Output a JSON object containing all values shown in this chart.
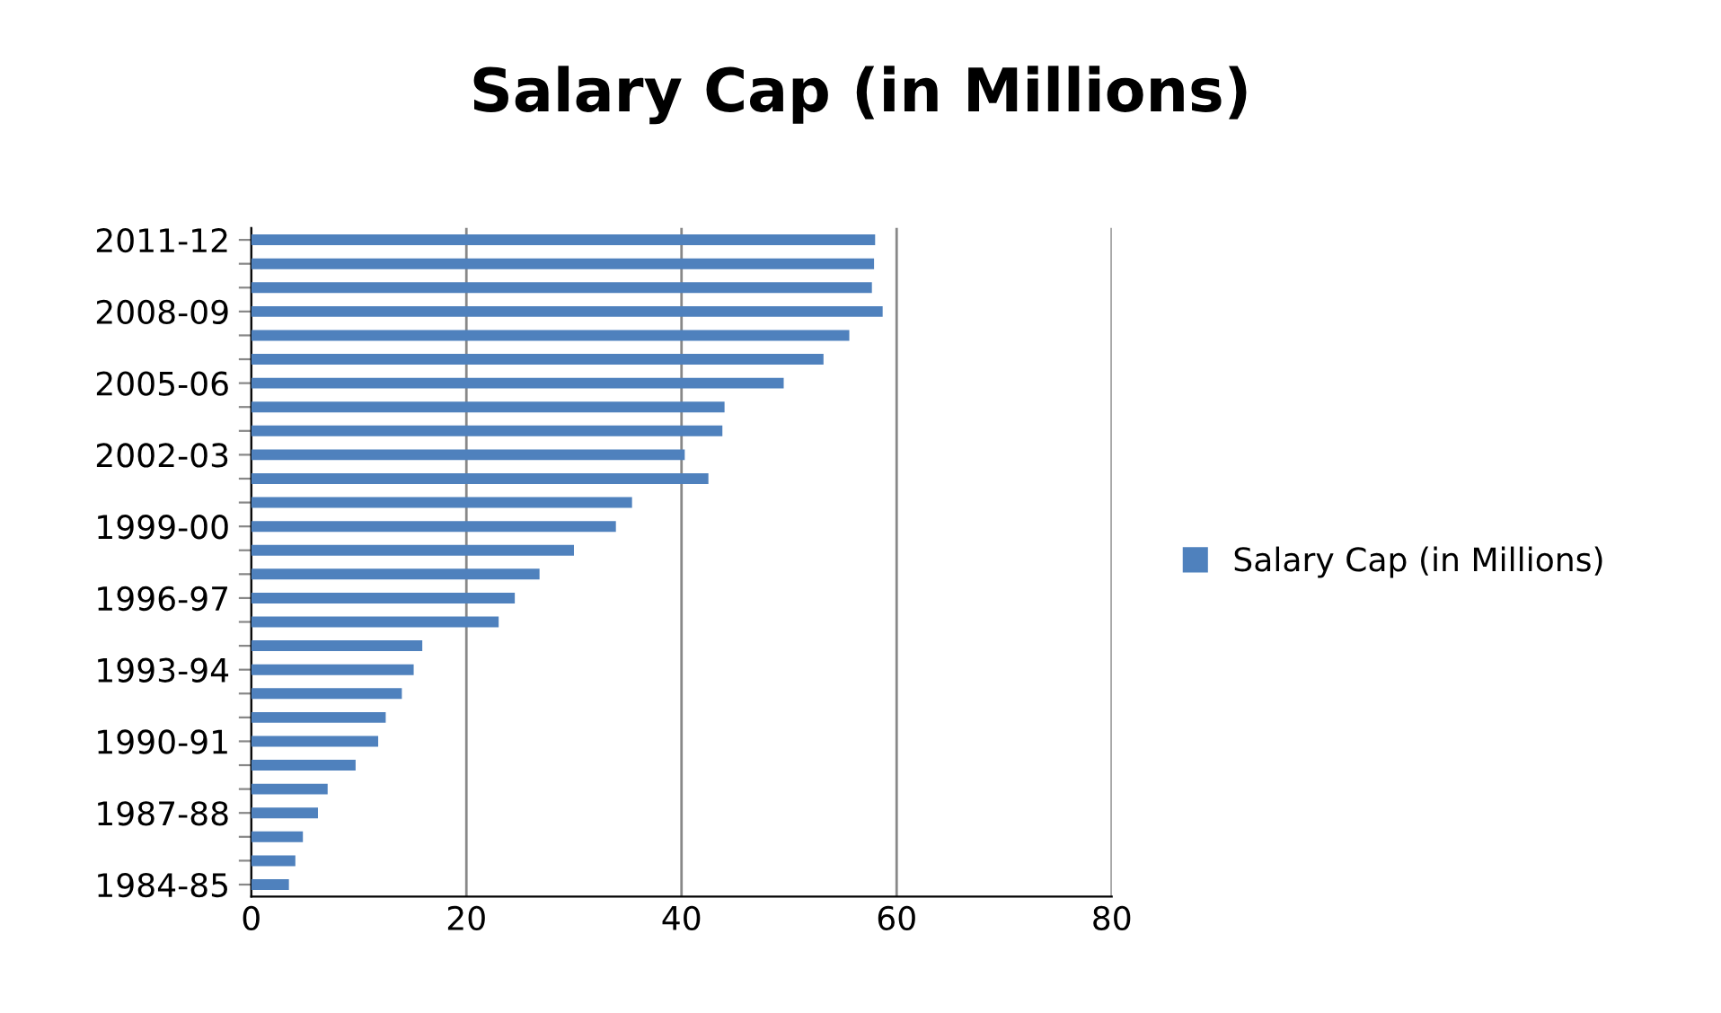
{
  "chart_data": {
    "type": "bar",
    "orientation": "horizontal",
    "title": "Salary Cap (in Millions)",
    "categories": [
      "2011-12",
      null,
      null,
      "2008-09",
      null,
      null,
      "2005-06",
      null,
      null,
      "2002-03",
      null,
      null,
      "1999-00",
      null,
      null,
      "1996-97",
      null,
      null,
      "1993-94",
      null,
      null,
      "1990-91",
      null,
      null,
      "1987-88",
      null,
      null,
      "1984-85"
    ],
    "series": [
      {
        "name": "Salary Cap (in Millions)",
        "color": "#4f81bd",
        "values": [
          58.0,
          57.9,
          57.7,
          58.7,
          55.6,
          53.2,
          49.5,
          44.0,
          43.8,
          40.3,
          42.5,
          35.4,
          33.9,
          30.0,
          26.8,
          24.5,
          23.0,
          15.9,
          15.1,
          14.0,
          12.5,
          11.8,
          9.7,
          7.1,
          6.2,
          4.8,
          4.1,
          3.5
        ]
      }
    ],
    "xlim": [
      0,
      80
    ],
    "xticks": [
      0,
      20,
      40,
      60,
      80
    ],
    "grid": "x",
    "legend": "right"
  }
}
